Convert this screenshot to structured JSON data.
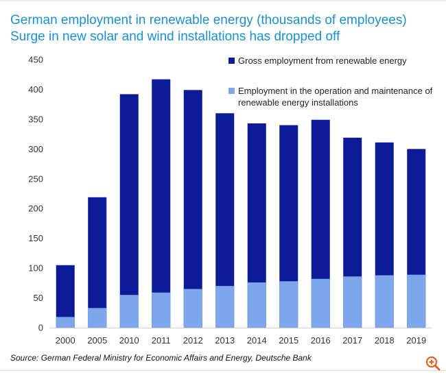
{
  "header": {
    "title": "German employment in renewable energy (thousands of employees)",
    "subtitle": "Surge in new solar and wind installations has dropped off"
  },
  "footer": {
    "source": "Source: German Federal Ministry for Economic Affairs and Energy, Deutsche Bank"
  },
  "colors": {
    "gross": "#0b1c96",
    "operation": "#7da6ed",
    "title": "#1b8fd0",
    "zoom_icon": "#e8601c"
  },
  "icons": {
    "zoom": "zoom-in-icon"
  },
  "chart_data": {
    "type": "bar",
    "stacked": false,
    "overlapping": true,
    "categories": [
      "2000",
      "2005",
      "2010",
      "2011",
      "2012",
      "2013",
      "2014",
      "2015",
      "2016",
      "2017",
      "2018",
      "2019"
    ],
    "series": [
      {
        "name": "Gross employment from renewable energy",
        "values": [
          105,
          219,
          392,
          417,
          399,
          360,
          343,
          340,
          349,
          319,
          311,
          300
        ]
      },
      {
        "name": "Employment in the operation and maintenance of renewable energy installations",
        "values": [
          18,
          33,
          55,
          59,
          65,
          70,
          76,
          78,
          82,
          86,
          88,
          89
        ]
      }
    ],
    "yticks": [
      0,
      50,
      100,
      150,
      200,
      250,
      300,
      350,
      400,
      450
    ],
    "ylim": [
      0,
      450
    ],
    "grid": false,
    "legend_position": "top-right"
  }
}
